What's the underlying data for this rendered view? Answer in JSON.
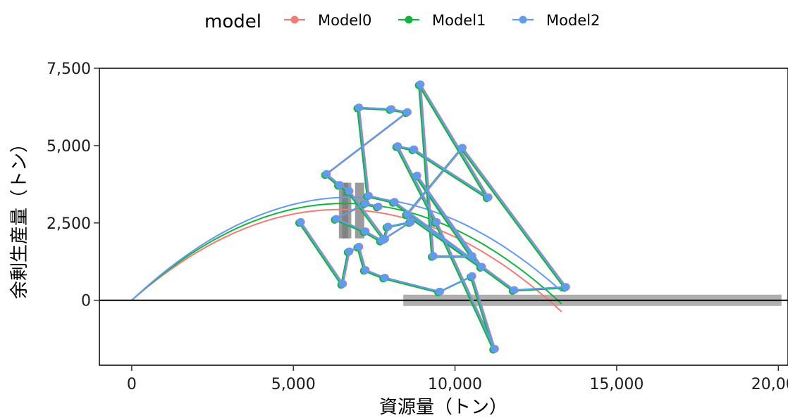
{
  "chart_data": {
    "type": "line",
    "xlabel": "資源量（トン）",
    "ylabel": "余剰生産量（トン）",
    "xlim": [
      -1000,
      20300
    ],
    "ylim": [
      -2100,
      7500
    ],
    "x_ticks": [
      0,
      5000,
      10000,
      15000,
      20000
    ],
    "x_tick_labels": [
      "0",
      "5,000",
      "10,000",
      "15,000",
      "20,000"
    ],
    "y_ticks": [
      0,
      2500,
      5000,
      7500
    ],
    "y_tick_labels": [
      "0",
      "2,500",
      "5,000",
      "7,500"
    ],
    "zero_line": 0,
    "grid": false,
    "legend": {
      "title": "model",
      "position": "top",
      "entries": [
        "Model0",
        "Model1",
        "Model2"
      ]
    },
    "observed_path": [
      [
        5200,
        2500
      ],
      [
        6500,
        500
      ],
      [
        6700,
        1550
      ],
      [
        7000,
        1700
      ],
      [
        7200,
        950
      ],
      [
        7800,
        700
      ],
      [
        9500,
        250
      ],
      [
        10500,
        750
      ],
      [
        11200,
        -1600
      ],
      [
        9400,
        2500
      ],
      [
        8200,
        4950
      ],
      [
        8700,
        4850
      ],
      [
        11000,
        3300
      ],
      [
        8900,
        6950
      ],
      [
        9300,
        1400
      ],
      [
        10500,
        1400
      ],
      [
        8800,
        4000
      ],
      [
        10800,
        1050
      ],
      [
        8500,
        2750
      ],
      [
        10200,
        4900
      ],
      [
        13400,
        400
      ],
      [
        11800,
        300
      ],
      [
        8100,
        3150
      ],
      [
        7300,
        3350
      ],
      [
        7000,
        6200
      ],
      [
        8000,
        6150
      ],
      [
        8500,
        6050
      ],
      [
        6000,
        4050
      ],
      [
        6400,
        3700
      ],
      [
        6700,
        3500
      ],
      [
        7800,
        1950
      ],
      [
        7900,
        2350
      ],
      [
        8600,
        2500
      ],
      [
        7700,
        1900
      ],
      [
        7200,
        2200
      ],
      [
        6300,
        2600
      ],
      [
        7200,
        3100
      ],
      [
        7600,
        3000
      ]
    ],
    "series": [
      {
        "name": "Model0",
        "color": "#F07C73",
        "curve": {
          "r": 0.91,
          "k": 12900
        },
        "offset": [
          40,
          30
        ]
      },
      {
        "name": "Model1",
        "color": "#12B53C",
        "curve": {
          "r": 0.95,
          "k": 13180
        },
        "offset": [
          -20,
          0
        ]
      },
      {
        "name": "Model2",
        "color": "#619BF0",
        "curve": {
          "r": 0.98,
          "k": 13600
        },
        "offset": [
          20,
          30
        ]
      }
    ],
    "curve_x_range": [
      0,
      13300
    ],
    "uncertainty_bars": {
      "color": "#7a7a7a",
      "vertical": [
        {
          "x": 6550,
          "y_low": 2000,
          "y_high": 3800
        },
        {
          "x": 6650,
          "y_low": 2000,
          "y_high": 3800
        },
        {
          "x": 7050,
          "y_low": 2000,
          "y_high": 3800
        }
      ],
      "horizontal": [
        {
          "y": 0,
          "x_low": 8400,
          "x_high": 20100
        }
      ]
    }
  }
}
